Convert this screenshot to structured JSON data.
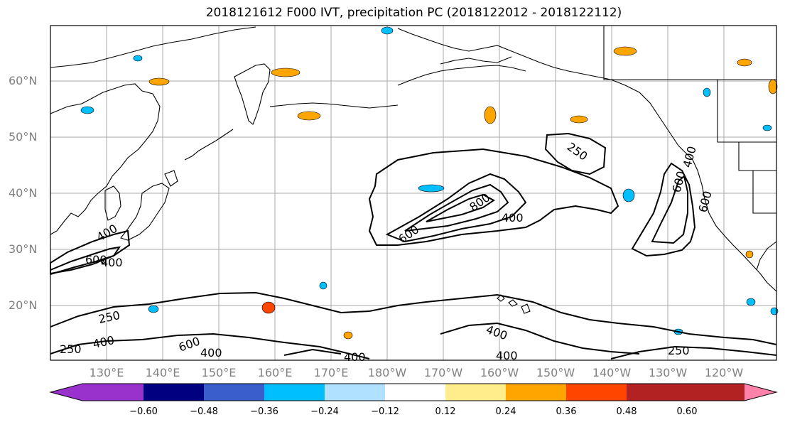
{
  "title": "2018121612 F000 IVT, precipitation PC (2018122012 - 2018122112)",
  "lat_labels": [
    "60°N",
    "50°N",
    "40°N",
    "30°N",
    "20°N"
  ],
  "lon_labels": [
    "130°E",
    "140°E",
    "150°E",
    "160°E",
    "170°E",
    "180°W",
    "170°W",
    "160°W",
    "150°W",
    "140°W",
    "130°W",
    "120°W"
  ],
  "colorbar": {
    "tick_labels": [
      "−0.60",
      "−0.48",
      "−0.36",
      "−0.24",
      "−0.12",
      "0.12",
      "0.24",
      "0.36",
      "0.48",
      "0.60"
    ],
    "colors": [
      "#9932CC",
      "#000080",
      "#3A5FCD",
      "#00BFFF",
      "#B0E2FF",
      "#FFFFFF",
      "#FFEC8B",
      "#FFA500",
      "#FF4500",
      "#B22222",
      "#FF82AB"
    ]
  },
  "contour_labels": [
    "250",
    "400",
    "600",
    "800",
    "400",
    "600",
    "400",
    "250",
    "400",
    "600",
    "400",
    "250",
    "400",
    "400",
    "400",
    "250",
    "600",
    "400",
    "600"
  ]
}
